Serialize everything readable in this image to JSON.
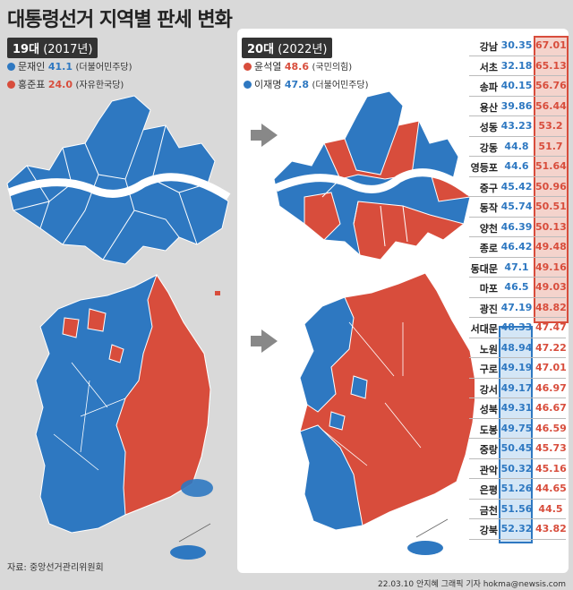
{
  "title": "대통령선거 지역별 판세 변화",
  "left": {
    "badge_num": "19대",
    "badge_year": "(2017년)",
    "legend": [
      {
        "name": "문재인",
        "value": "41.1",
        "party": "(더불어민주당)",
        "color": "#2e78c1"
      },
      {
        "name": "홍준표",
        "value": "24.0",
        "party": "(자유한국당)",
        "color": "#d84d3c"
      }
    ]
  },
  "right": {
    "badge_num": "20대",
    "badge_year": "(2022년)",
    "legend": [
      {
        "name": "윤석열",
        "value": "48.6",
        "party": "(국민의힘)",
        "color": "#d84d3c"
      },
      {
        "name": "이재명",
        "value": "47.8",
        "party": "(더불어민주당)",
        "color": "#2e78c1"
      }
    ]
  },
  "districts": [
    {
      "name": "강남",
      "lee": "30.35",
      "yoon": "67.01"
    },
    {
      "name": "서초",
      "lee": "32.18",
      "yoon": "65.13"
    },
    {
      "name": "송파",
      "lee": "40.15",
      "yoon": "56.76"
    },
    {
      "name": "용산",
      "lee": "39.86",
      "yoon": "56.44"
    },
    {
      "name": "성동",
      "lee": "43.23",
      "yoon": "53.2"
    },
    {
      "name": "강동",
      "lee": "44.8",
      "yoon": "51.7"
    },
    {
      "name": "영등포",
      "lee": "44.6",
      "yoon": "51.64"
    },
    {
      "name": "중구",
      "lee": "45.42",
      "yoon": "50.96"
    },
    {
      "name": "동작",
      "lee": "45.74",
      "yoon": "50.51"
    },
    {
      "name": "양천",
      "lee": "46.39",
      "yoon": "50.13"
    },
    {
      "name": "종로",
      "lee": "46.42",
      "yoon": "49.48"
    },
    {
      "name": "동대문",
      "lee": "47.1",
      "yoon": "49.16"
    },
    {
      "name": "마포",
      "lee": "46.5",
      "yoon": "49.03"
    },
    {
      "name": "광진",
      "lee": "47.19",
      "yoon": "48.82"
    },
    {
      "name": "서대문",
      "lee": "48.33",
      "yoon": "47.47"
    },
    {
      "name": "노원",
      "lee": "48.94",
      "yoon": "47.22"
    },
    {
      "name": "구로",
      "lee": "49.19",
      "yoon": "47.01"
    },
    {
      "name": "강서",
      "lee": "49.17",
      "yoon": "46.97"
    },
    {
      "name": "성북",
      "lee": "49.31",
      "yoon": "46.67"
    },
    {
      "name": "도봉",
      "lee": "49.75",
      "yoon": "46.59"
    },
    {
      "name": "중랑",
      "lee": "50.45",
      "yoon": "45.73"
    },
    {
      "name": "관악",
      "lee": "50.32",
      "yoon": "45.16"
    },
    {
      "name": "은평",
      "lee": "51.26",
      "yoon": "44.65"
    },
    {
      "name": "금천",
      "lee": "51.56",
      "yoon": "44.5"
    },
    {
      "name": "강북",
      "lee": "52.32",
      "yoon": "43.82"
    }
  ],
  "source": "자료: 중앙선거관리위원회",
  "credit": "22.03.10 안지혜 그래픽 기자 hokma@newsis.com",
  "watermark": "NEWSIS",
  "colors": {
    "blue": "#2e78c1",
    "red": "#d84d3c"
  }
}
